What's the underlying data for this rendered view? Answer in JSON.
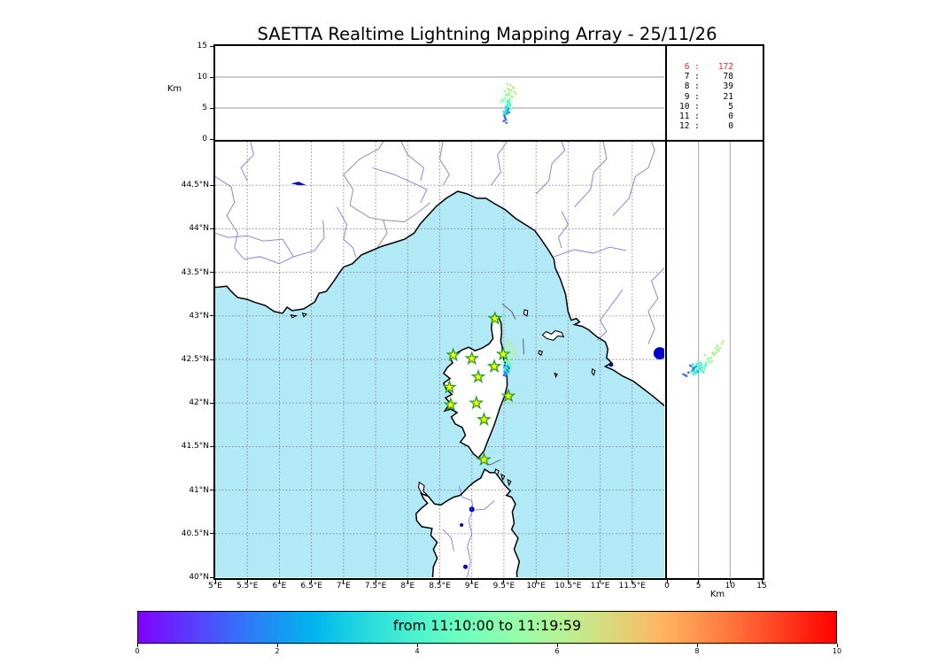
{
  "title": "SAETTA Realtime Lightning Mapping Array - 25/11/26",
  "colors": {
    "sea": "#b1e9f7",
    "land": "#ffffff",
    "coastline": "#000000",
    "river": "#7b7be0",
    "country_border": "#888888",
    "lake": "#0000cc",
    "grid": "#808080",
    "station_fill": "#ffff00",
    "station_edge": "#22a022",
    "highlight_red": "#ff2222"
  },
  "panels": {
    "altitude_lon": {
      "ylabel": "Km",
      "ytick_labels": [
        "0",
        "5",
        "10",
        "15"
      ]
    },
    "counts": {
      "rows": [
        {
          "level": "6",
          "count": "172",
          "highlight": true
        },
        {
          "level": "7",
          "count": "78",
          "highlight": false
        },
        {
          "level": "8",
          "count": "39",
          "highlight": false
        },
        {
          "level": "9",
          "count": "21",
          "highlight": false
        },
        {
          "level": "10",
          "count": "5",
          "highlight": false
        },
        {
          "level": "11",
          "count": "0",
          "highlight": false
        },
        {
          "level": "12",
          "count": "0",
          "highlight": false
        }
      ]
    },
    "map": {
      "lat_tick_labels": [
        "44.5°N",
        "44°N",
        "43.5°N",
        "43°N",
        "42.5°N",
        "42°N",
        "41.5°N",
        "41°N",
        "40.5°N",
        "40°N"
      ],
      "lon_tick_labels": [
        "5°E",
        "5.5°E",
        "6°E",
        "6.5°E",
        "7°E",
        "7.5°E",
        "8°E",
        "8.5°E",
        "9°E",
        "9.5°E",
        "10°E",
        "10.5°E",
        "11°E",
        "11.5°E"
      ]
    },
    "altitude_lat": {
      "xlabel": "Km",
      "xtick_labels": [
        "0",
        "5",
        "10",
        "15"
      ]
    }
  },
  "colorbar": {
    "label": "from 11:10:00 to 11:19:59",
    "tick_labels": [
      "0",
      "2",
      "4",
      "6",
      "8",
      "10"
    ]
  },
  "chart_data": {
    "type": "scatter",
    "title": "SAETTA Realtime Lightning Mapping Array - 25/11/26",
    "date": "25/11/26",
    "time_window_from": "11:10:00",
    "time_window_to": "11:19:59",
    "map_view": {
      "lon_range": [
        5.0,
        12.0
      ],
      "lat_range": [
        40.0,
        45.0
      ],
      "grid_step_deg": 0.5
    },
    "altitude_axis": {
      "label": "Km",
      "range": [
        0,
        15
      ],
      "ticks": [
        0,
        5,
        10,
        15
      ],
      "gridlines": [
        5,
        10
      ]
    },
    "colorbar": {
      "colormap": "rainbow",
      "range": [
        0,
        10
      ],
      "ticks": [
        0,
        2,
        4,
        6,
        8,
        10
      ]
    },
    "station_counts": [
      {
        "level": 6,
        "count": 172
      },
      {
        "level": 7,
        "count": 78
      },
      {
        "level": 8,
        "count": 39
      },
      {
        "level": 9,
        "count": 21
      },
      {
        "level": 10,
        "count": 5
      },
      {
        "level": 11,
        "count": 0
      },
      {
        "level": 12,
        "count": 0
      }
    ],
    "stations_lonlat": [
      [
        9.36,
        42.97
      ],
      [
        8.71,
        42.55
      ],
      [
        9.0,
        42.51
      ],
      [
        9.49,
        42.56
      ],
      [
        9.35,
        42.42
      ],
      [
        9.1,
        42.3
      ],
      [
        8.65,
        42.18
      ],
      [
        9.57,
        42.08
      ],
      [
        8.67,
        41.98
      ],
      [
        9.07,
        42.0
      ],
      [
        9.19,
        41.81
      ],
      [
        9.19,
        41.35
      ]
    ],
    "sources_lon_lat_altkm_t": [
      [
        9.55,
        42.52,
        7.0,
        5.5
      ],
      [
        9.58,
        42.55,
        7.4,
        5.7
      ],
      [
        9.52,
        42.49,
        6.6,
        5.2
      ],
      [
        9.6,
        42.58,
        7.8,
        5.9
      ],
      [
        9.56,
        42.61,
        8.1,
        6.0
      ],
      [
        9.62,
        42.52,
        6.9,
        5.8
      ],
      [
        9.49,
        42.47,
        6.2,
        5.1
      ],
      [
        9.64,
        42.63,
        8.4,
        6.2
      ],
      [
        9.57,
        42.66,
        8.0,
        6.1
      ],
      [
        9.53,
        42.57,
        7.2,
        5.4
      ],
      [
        9.66,
        42.56,
        7.6,
        6.3
      ],
      [
        9.6,
        42.68,
        8.7,
        6.2
      ],
      [
        9.47,
        42.51,
        6.4,
        5.3
      ],
      [
        9.63,
        42.46,
        6.8,
        5.9
      ],
      [
        9.55,
        42.71,
        8.9,
        6.4
      ],
      [
        9.58,
        42.48,
        7.1,
        5.6
      ],
      [
        9.51,
        42.62,
        7.7,
        5.5
      ],
      [
        9.65,
        42.6,
        8.2,
        6.1
      ],
      [
        9.59,
        42.51,
        6.5,
        5.8
      ],
      [
        9.61,
        42.64,
        7.9,
        6.0
      ],
      [
        9.46,
        42.55,
        6.0,
        5.2
      ],
      [
        9.68,
        42.58,
        7.3,
        6.3
      ],
      [
        9.53,
        42.38,
        4.8,
        3.6
      ],
      [
        9.55,
        42.4,
        5.1,
        3.8
      ],
      [
        9.52,
        42.36,
        4.4,
        3.5
      ],
      [
        9.56,
        42.37,
        5.4,
        4.0
      ],
      [
        9.54,
        42.42,
        4.9,
        3.7
      ],
      [
        9.51,
        42.39,
        4.2,
        3.4
      ],
      [
        9.57,
        42.41,
        5.6,
        4.2
      ],
      [
        9.55,
        42.35,
        4.6,
        3.9
      ],
      [
        9.53,
        42.43,
        5.2,
        3.6
      ],
      [
        9.58,
        42.38,
        5.0,
        4.4
      ],
      [
        9.52,
        42.41,
        4.0,
        3.3
      ],
      [
        9.56,
        42.44,
        5.5,
        4.1
      ],
      [
        9.54,
        42.37,
        4.3,
        3.8
      ],
      [
        9.5,
        42.36,
        3.9,
        3.5
      ],
      [
        9.57,
        42.35,
        5.8,
        4.3
      ],
      [
        9.55,
        42.46,
        5.3,
        4.0
      ],
      [
        9.59,
        42.42,
        6.0,
        4.5
      ],
      [
        9.53,
        42.34,
        4.5,
        3.7
      ],
      [
        9.51,
        42.44,
        4.1,
        3.4
      ],
      [
        9.56,
        42.39,
        5.9,
        4.2
      ],
      [
        9.58,
        42.45,
        6.2,
        4.6
      ],
      [
        9.54,
        42.45,
        4.7,
        3.9
      ],
      [
        9.52,
        42.33,
        4.2,
        3.6
      ],
      [
        9.6,
        42.4,
        5.4,
        4.4
      ],
      [
        9.55,
        42.43,
        6.1,
        4.0
      ],
      [
        9.57,
        42.47,
        5.0,
        4.3
      ],
      [
        9.5,
        42.41,
        4.4,
        3.5
      ],
      [
        9.59,
        42.36,
        5.7,
        4.5
      ],
      [
        9.53,
        42.4,
        5.3,
        3.8
      ],
      [
        9.61,
        42.43,
        4.9,
        4.6
      ],
      [
        9.52,
        42.35,
        3.4,
        1.2
      ],
      [
        9.55,
        42.38,
        4.1,
        1.6
      ],
      [
        9.5,
        42.32,
        2.9,
        0.9
      ],
      [
        9.56,
        42.42,
        4.6,
        2.0
      ],
      [
        9.53,
        42.31,
        3.1,
        1.4
      ],
      [
        9.57,
        42.36,
        4.9,
        2.2
      ],
      [
        9.51,
        42.43,
        3.7,
        1.1
      ],
      [
        9.54,
        42.33,
        2.6,
        1.8
      ],
      [
        9.58,
        42.4,
        4.3,
        1.5
      ]
    ]
  }
}
